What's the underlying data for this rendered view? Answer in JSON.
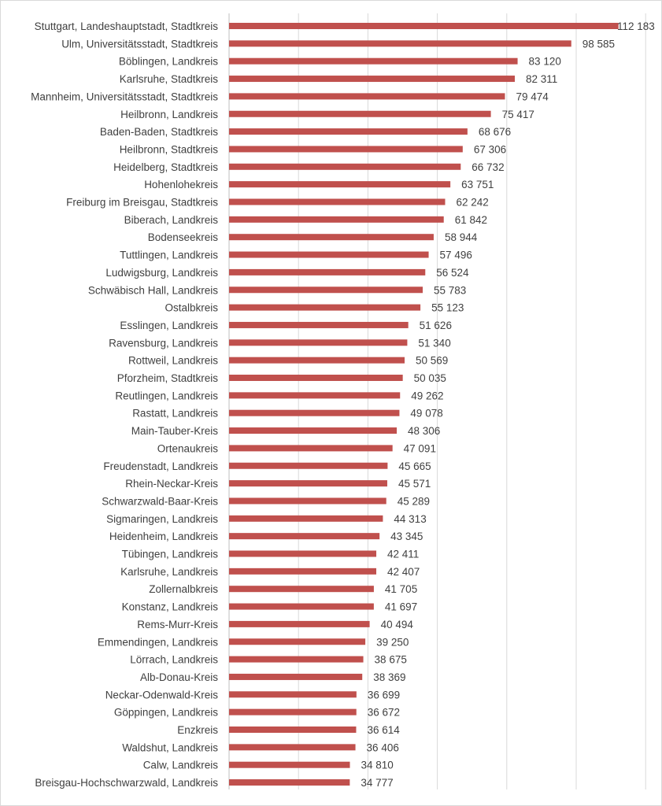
{
  "chart_data": {
    "type": "bar",
    "orientation": "horizontal",
    "title": "",
    "xlabel": "",
    "ylabel": "",
    "xlim": [
      0,
      120000
    ],
    "grid": true,
    "legend": "none",
    "bar_color": "#c0504d",
    "gridline_color": "#d9d9d9",
    "categories": [
      "Stuttgart, Landeshauptstadt, Stadtkreis",
      "Ulm, Universitätsstadt, Stadtkreis",
      "Böblingen, Landkreis",
      "Karlsruhe, Stadtkreis",
      "Mannheim, Universitätsstadt, Stadtkreis",
      "Heilbronn, Landkreis",
      "Baden-Baden, Stadtkreis",
      "Heilbronn, Stadtkreis",
      "Heidelberg, Stadtkreis",
      "Hohenlohekreis",
      "Freiburg im Breisgau, Stadtkreis",
      "Biberach, Landkreis",
      "Bodenseekreis",
      "Tuttlingen, Landkreis",
      "Ludwigsburg, Landkreis",
      "Schwäbisch Hall, Landkreis",
      "Ostalbkreis",
      "Esslingen, Landkreis",
      "Ravensburg, Landkreis",
      "Rottweil, Landkreis",
      "Pforzheim, Stadtkreis",
      "Reutlingen, Landkreis",
      "Rastatt, Landkreis",
      "Main-Tauber-Kreis",
      "Ortenaukreis",
      "Freudenstadt, Landkreis",
      "Rhein-Neckar-Kreis",
      "Schwarzwald-Baar-Kreis",
      "Sigmaringen, Landkreis",
      "Heidenheim, Landkreis",
      "Tübingen, Landkreis",
      "Karlsruhe, Landkreis",
      "Zollernalbkreis",
      "Konstanz, Landkreis",
      "Rems-Murr-Kreis",
      "Emmendingen, Landkreis",
      "Lörrach, Landkreis",
      "Alb-Donau-Kreis",
      "Neckar-Odenwald-Kreis",
      "Göppingen, Landkreis",
      "Enzkreis",
      "Waldshut, Landkreis",
      "Calw, Landkreis",
      "Breisgau-Hochschwarzwald, Landkreis"
    ],
    "values": [
      112183,
      98585,
      83120,
      82311,
      79474,
      75417,
      68676,
      67306,
      66732,
      63751,
      62242,
      61842,
      58944,
      57496,
      56524,
      55783,
      55123,
      51626,
      51340,
      50569,
      50035,
      49262,
      49078,
      48306,
      47091,
      45665,
      45571,
      45289,
      44313,
      43345,
      42411,
      42407,
      41705,
      41697,
      40494,
      39250,
      38675,
      38369,
      36699,
      36672,
      36614,
      36406,
      34810,
      34777
    ],
    "value_labels": [
      "112 183",
      "98 585",
      "83 120",
      "82 311",
      "79 474",
      "75 417",
      "68 676",
      "67 306",
      "66 732",
      "63 751",
      "62 242",
      "61 842",
      "58 944",
      "57 496",
      "56 524",
      "55 783",
      "55 123",
      "51 626",
      "51 340",
      "50 569",
      "50 035",
      "49 262",
      "49 078",
      "48 306",
      "47 091",
      "45 665",
      "45 571",
      "45 289",
      "44 313",
      "43 345",
      "42 411",
      "42 407",
      "41 705",
      "41 697",
      "40 494",
      "39 250",
      "38 675",
      "38 369",
      "36 699",
      "36 672",
      "36 614",
      "36 406",
      "34 810",
      "34 777"
    ]
  }
}
